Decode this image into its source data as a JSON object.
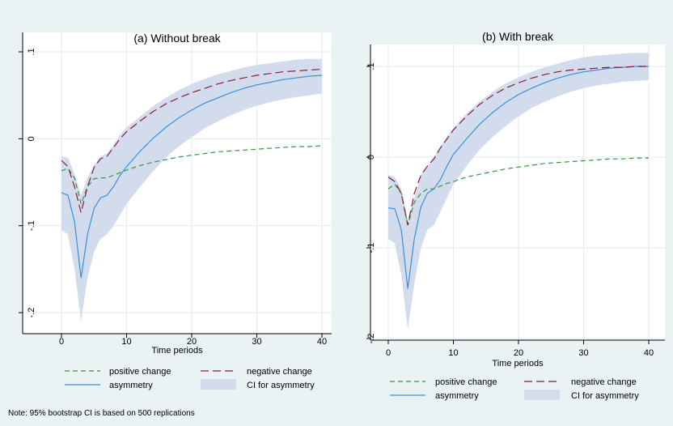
{
  "chart_data": [
    {
      "type": "line",
      "title": "(a) Without break",
      "xlabel": "Time periods",
      "ylabel": "",
      "xlim": [
        0,
        40
      ],
      "ylim": [
        -0.2,
        0.1
      ],
      "xticks": [
        "0",
        "10",
        "20",
        "30",
        "40"
      ],
      "yticks": [
        "-.2",
        "-.1",
        "0",
        ".1"
      ],
      "x": [
        0,
        1,
        2,
        3,
        4,
        5,
        6,
        7,
        8,
        9,
        10,
        12,
        14,
        16,
        18,
        20,
        22,
        24,
        26,
        28,
        30,
        32,
        34,
        36,
        38,
        40
      ],
      "series": [
        {
          "name": "positive change",
          "color": "#2e9a3a",
          "dash": "long",
          "values": [
            -0.037,
            -0.034,
            -0.045,
            -0.075,
            -0.055,
            -0.046,
            -0.045,
            -0.045,
            -0.042,
            -0.039,
            -0.036,
            -0.031,
            -0.027,
            -0.024,
            -0.021,
            -0.019,
            -0.017,
            -0.015,
            -0.014,
            -0.013,
            -0.012,
            -0.011,
            -0.01,
            -0.009,
            -0.009,
            -0.008
          ]
        },
        {
          "name": "negative change",
          "color": "#8b1a3e",
          "dash": "longer",
          "values": [
            -0.025,
            -0.032,
            -0.055,
            -0.085,
            -0.055,
            -0.033,
            -0.023,
            -0.02,
            -0.01,
            0.0,
            0.008,
            0.02,
            0.031,
            0.04,
            0.047,
            0.053,
            0.058,
            0.063,
            0.067,
            0.07,
            0.073,
            0.075,
            0.077,
            0.078,
            0.079,
            0.08
          ]
        },
        {
          "name": "asymmetry",
          "color": "#3a8fe0",
          "dash": "solid",
          "values": [
            -0.062,
            -0.065,
            -0.095,
            -0.16,
            -0.11,
            -0.08,
            -0.068,
            -0.065,
            -0.055,
            -0.042,
            -0.032,
            -0.015,
            0.0,
            0.013,
            0.024,
            0.033,
            0.041,
            0.047,
            0.053,
            0.058,
            0.062,
            0.065,
            0.068,
            0.07,
            0.072,
            0.073
          ]
        }
      ],
      "ci": {
        "name": "CI for asymmetry",
        "color": "#d3dcec",
        "upper": [
          -0.02,
          -0.022,
          -0.04,
          -0.065,
          -0.045,
          -0.03,
          -0.02,
          -0.017,
          -0.007,
          0.005,
          0.013,
          0.025,
          0.037,
          0.047,
          0.056,
          0.063,
          0.069,
          0.074,
          0.078,
          0.082,
          0.085,
          0.087,
          0.089,
          0.091,
          0.092,
          0.092
        ],
        "lower": [
          -0.105,
          -0.11,
          -0.15,
          -0.21,
          -0.16,
          -0.13,
          -0.115,
          -0.11,
          -0.1,
          -0.088,
          -0.075,
          -0.056,
          -0.038,
          -0.022,
          -0.009,
          0.002,
          0.012,
          0.02,
          0.027,
          0.033,
          0.038,
          0.042,
          0.045,
          0.048,
          0.05,
          0.052
        ]
      }
    },
    {
      "type": "line",
      "title": "(b) With break",
      "xlabel": "Time periods",
      "ylabel": "",
      "xlim": [
        0,
        40
      ],
      "ylim": [
        -0.2,
        0.1
      ],
      "xticks": [
        "0",
        "10",
        "20",
        "30",
        "40"
      ],
      "yticks": [
        "-.2",
        "-.1",
        "0",
        ".1"
      ],
      "x": [
        0,
        1,
        2,
        3,
        4,
        5,
        6,
        7,
        8,
        9,
        10,
        12,
        14,
        16,
        18,
        20,
        22,
        24,
        26,
        28,
        30,
        32,
        34,
        36,
        38,
        40
      ],
      "series": [
        {
          "name": "positive change",
          "color": "#2e9a3a",
          "dash": "long",
          "values": [
            -0.035,
            -0.03,
            -0.04,
            -0.075,
            -0.05,
            -0.04,
            -0.035,
            -0.035,
            -0.032,
            -0.029,
            -0.027,
            -0.022,
            -0.019,
            -0.016,
            -0.013,
            -0.011,
            -0.009,
            -0.007,
            -0.006,
            -0.005,
            -0.004,
            -0.003,
            -0.002,
            -0.002,
            -0.001,
            -0.001
          ]
        },
        {
          "name": "negative change",
          "color": "#8b1a3e",
          "dash": "longer",
          "values": [
            -0.022,
            -0.027,
            -0.04,
            -0.075,
            -0.04,
            -0.02,
            -0.01,
            -0.002,
            0.01,
            0.02,
            0.03,
            0.045,
            0.058,
            0.068,
            0.076,
            0.082,
            0.087,
            0.091,
            0.094,
            0.096,
            0.097,
            0.098,
            0.099,
            0.099,
            0.1,
            0.1
          ]
        },
        {
          "name": "asymmetry",
          "color": "#3a8fe0",
          "dash": "solid",
          "values": [
            -0.056,
            -0.057,
            -0.08,
            -0.145,
            -0.09,
            -0.055,
            -0.04,
            -0.035,
            -0.025,
            -0.01,
            0.003,
            0.02,
            0.036,
            0.049,
            0.06,
            0.069,
            0.076,
            0.082,
            0.087,
            0.091,
            0.094,
            0.096,
            0.098,
            0.099,
            0.1,
            0.1
          ]
        }
      ],
      "ci": {
        "name": "CI for asymmetry",
        "color": "#d3dcec",
        "upper": [
          -0.02,
          -0.022,
          -0.035,
          -0.07,
          -0.045,
          -0.02,
          -0.01,
          0.0,
          0.012,
          0.022,
          0.032,
          0.048,
          0.061,
          0.072,
          0.081,
          0.088,
          0.094,
          0.099,
          0.103,
          0.107,
          0.11,
          0.112,
          0.113,
          0.114,
          0.115,
          0.115
        ],
        "lower": [
          -0.09,
          -0.095,
          -0.13,
          -0.19,
          -0.14,
          -0.1,
          -0.08,
          -0.075,
          -0.06,
          -0.045,
          -0.03,
          -0.01,
          0.008,
          0.022,
          0.034,
          0.045,
          0.054,
          0.061,
          0.067,
          0.072,
          0.076,
          0.079,
          0.081,
          0.083,
          0.084,
          0.085
        ]
      }
    }
  ],
  "note": "Note: 95% bootstrap CI is based on 500 replications"
}
